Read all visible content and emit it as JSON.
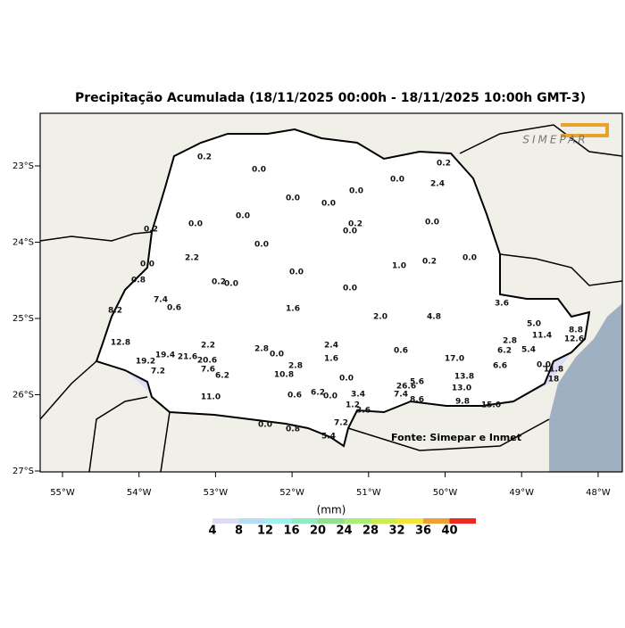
{
  "title": "Precipitação Acumulada (18/11/2025 00:00h - 18/11/2025 10:00h GMT-3)",
  "logo": "SIMEPAR",
  "source": "Fonte: Simepar e Inmet",
  "lat_ticks": [
    {
      "value": -23,
      "label": "23°S"
    },
    {
      "value": -24,
      "label": "24°S"
    },
    {
      "value": -25,
      "label": "25°S"
    },
    {
      "value": -26,
      "label": "26°S"
    },
    {
      "value": -27,
      "label": "27°S"
    }
  ],
  "lon_ticks": [
    {
      "value": -55,
      "label": "55°W"
    },
    {
      "value": -54,
      "label": "54°W"
    },
    {
      "value": -53,
      "label": "53°W"
    },
    {
      "value": -52,
      "label": "52°W"
    },
    {
      "value": -51,
      "label": "51°W"
    },
    {
      "value": -50,
      "label": "50°W"
    },
    {
      "value": -49,
      "label": "49°W"
    },
    {
      "value": -48,
      "label": "48°W"
    }
  ],
  "stations": [
    "0.2",
    "0.0",
    "0.2",
    "0.0",
    "0.0",
    "2.4",
    "0.0",
    "0.0",
    "0.0",
    "0.0",
    "0.2",
    "0.0",
    "0.2",
    "0.0",
    "0.0",
    "2.2",
    "0.0",
    "1.0",
    "0.2",
    "0.0",
    "0.0",
    "0.8",
    "0.2",
    "0.0",
    "0.0",
    "7.4",
    "0.6",
    "8.2",
    "1.6",
    "3.6",
    "2.0",
    "4.8",
    "5.0",
    "8.8",
    "12.8",
    "2.2",
    "2.4",
    "2.8",
    "12.6",
    "11.4",
    "2.8",
    "0.0",
    "0.6",
    "17.0",
    "6.2",
    "5.4",
    "1.6",
    "19.4",
    "21.6",
    "19.2",
    "20.6",
    "2.8",
    "0.0",
    "6.6",
    "7.6",
    "7.2",
    "10.8",
    "6.2",
    "11.8",
    "0.0",
    "13.8",
    "26.6",
    "5.6",
    "6.2",
    "0.6",
    "0.0",
    "3.4",
    "13.0",
    "11.0",
    "7.4",
    "8.6",
    "9.8",
    "15.0",
    "1.2",
    "3.6",
    "0.0",
    "7.2",
    "0.8",
    "5.4",
    "18"
  ],
  "colorbar": {
    "unit": "(mm)",
    "ticks": [
      4,
      8,
      12,
      16,
      20,
      24,
      28,
      32,
      36,
      40
    ],
    "colors": [
      "#ffffff",
      "#dcdcf6",
      "#b4dcf4",
      "#a0f0f0",
      "#90ecc0",
      "#8ee28e",
      "#a8ee78",
      "#c8ee50",
      "#f4e632",
      "#f0a030",
      "#ee2a1e"
    ]
  }
}
